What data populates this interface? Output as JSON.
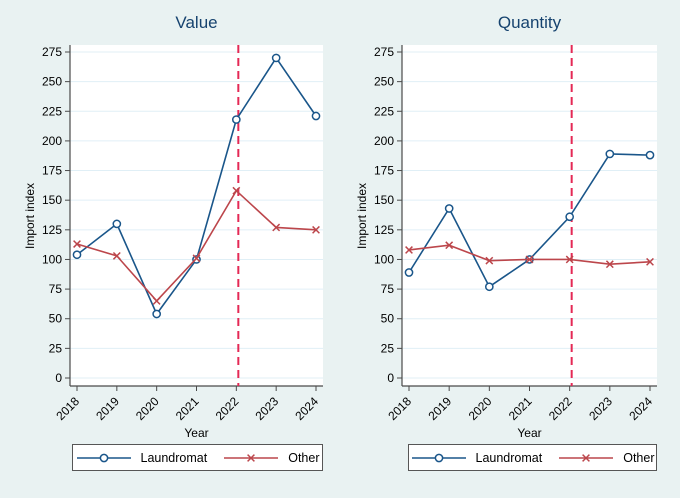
{
  "figure": {
    "background": "#e9f2f2",
    "plot_background": "#ffffff",
    "grid_color": "#e0eff6",
    "axis_color": "#4a4a4a",
    "tick_text_color": "#000000",
    "title_color": "#16436f",
    "legend_border_color": "#565656",
    "vline_color": "#e42955"
  },
  "chart_data": [
    {
      "type": "line",
      "title": "Value",
      "xlabel": "Year",
      "ylabel": "Import index",
      "x": [
        2018,
        2019,
        2020,
        2021,
        2022,
        2023,
        2024
      ],
      "ylim": [
        0,
        275
      ],
      "ytick_step": 25,
      "grid": true,
      "legend_position": "bottom",
      "vline_x": 2022.05,
      "vline_style": "dashed",
      "series": [
        {
          "name": "Laundromat",
          "marker": "circle",
          "color": "#1a568a",
          "values": [
            104,
            130,
            54,
            100,
            218,
            270,
            221
          ]
        },
        {
          "name": "Other",
          "marker": "x",
          "color": "#bc464b",
          "values": [
            113,
            103,
            65,
            101,
            158,
            127,
            125
          ]
        }
      ]
    },
    {
      "type": "line",
      "title": "Quantity",
      "xlabel": "Year",
      "ylabel": "Import index",
      "x": [
        2018,
        2019,
        2020,
        2021,
        2022,
        2023,
        2024
      ],
      "ylim": [
        0,
        275
      ],
      "ytick_step": 25,
      "grid": true,
      "legend_position": "bottom",
      "vline_x": 2022.05,
      "vline_style": "dashed",
      "series": [
        {
          "name": "Laundromat",
          "marker": "circle",
          "color": "#1a568a",
          "values": [
            89,
            143,
            77,
            100,
            136,
            189,
            188
          ]
        },
        {
          "name": "Other",
          "marker": "x",
          "color": "#bc464b",
          "values": [
            108,
            112,
            99,
            100,
            100,
            96,
            98
          ]
        }
      ]
    }
  ]
}
